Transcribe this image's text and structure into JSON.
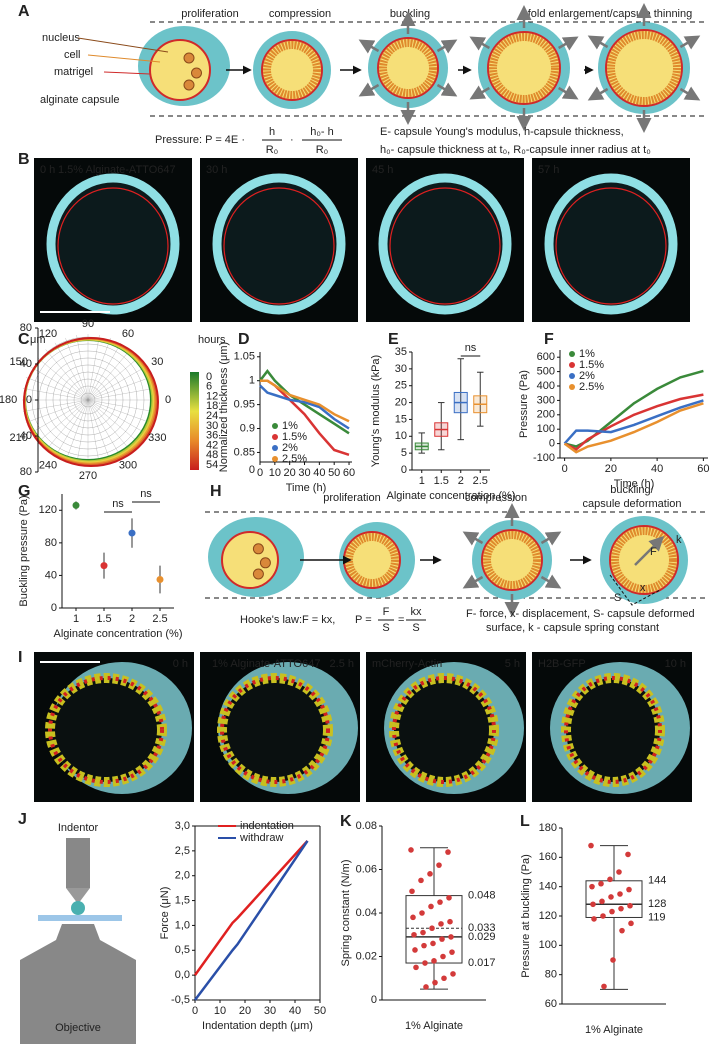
{
  "A": {
    "letter": "A",
    "steps": [
      "proliferation",
      "compression",
      "buckling",
      "fold enlargement/capsule thinning"
    ],
    "labels": {
      "nucleus": "nucleus",
      "cell": "cell",
      "matrigel": "matrigel",
      "capsule": "alginate capsule"
    },
    "formula": {
      "lead": "Pressure:  P = 4E ·",
      "f1_num": "h",
      "f1_den": "R₀",
      "dot": "·",
      "f2_num": "h₀- h",
      "f2_den": "R₀"
    },
    "legend": [
      "E- capsule Young's modulus, h-capsule thickness,",
      "h₀- capsule thickness at t₀, R₀-capsule inner radius at t₀"
    ]
  },
  "B": {
    "letter": "B",
    "stain": "1.5% Alginate-ATTO647",
    "times": [
      "0 h",
      "30 h",
      "45 h",
      "57 h"
    ]
  },
  "C": {
    "letter": "C",
    "unit": "μm",
    "rticks": [
      80,
      40,
      0,
      {
        "value": -40,
        "label": "40"
      },
      {
        "value": -80,
        "label": "80"
      }
    ],
    "angles": [
      90,
      60,
      30,
      0,
      330,
      300,
      270,
      240,
      210,
      180,
      150,
      120
    ],
    "colorbar_title": "hours",
    "colorbar_ticks": [
      0,
      6,
      12,
      18,
      24,
      30,
      36,
      42,
      48,
      54
    ]
  },
  "D": {
    "letter": "D",
    "chart": {
      "type": "line",
      "ylabel": "Normalized thickness (μm)",
      "xlabel": "Time (h)",
      "y_origin_label": "0",
      "xlim": [
        0,
        62
      ],
      "xticks": [
        0,
        10,
        20,
        30,
        40,
        50,
        60
      ],
      "ylim": [
        0.83,
        1.06
      ],
      "yticks": [
        0.85,
        0.9,
        0.95,
        1,
        1.05
      ],
      "x": [
        0,
        5,
        10,
        20,
        30,
        40,
        50,
        60
      ],
      "series": [
        {
          "name": "1%",
          "color": "#3a8a3a",
          "values": [
            1.0,
            1.02,
            1.0,
            0.97,
            0.95,
            0.93,
            0.91,
            0.89
          ]
        },
        {
          "name": "1.5%",
          "color": "#d93434",
          "values": [
            1.0,
            1.0,
            0.99,
            0.96,
            0.93,
            0.89,
            0.855,
            0.845
          ]
        },
        {
          "name": "2%",
          "color": "#3a6fc4",
          "values": [
            0.99,
            0.975,
            0.97,
            0.96,
            0.955,
            0.945,
            0.92,
            0.9
          ]
        },
        {
          "name": "2.5%",
          "color": "#e8902e",
          "values": [
            1.0,
            1.0,
            0.99,
            0.97,
            0.96,
            0.95,
            0.93,
            0.915
          ]
        }
      ]
    }
  },
  "E": {
    "letter": "E",
    "chart": {
      "type": "box",
      "ylabel": "Young's modulus (kPa)",
      "xlabel": "Alginate concentration (%)",
      "categories": [
        "1",
        "1.5",
        "2",
        "2.5"
      ],
      "ylim": [
        0,
        35
      ],
      "yticks": [
        0,
        5,
        10,
        15,
        20,
        25,
        30,
        35
      ],
      "annotation": "ns",
      "boxes": [
        {
          "color": "#3a8a3a",
          "low": 5,
          "q1": 6,
          "median": 7,
          "q3": 8,
          "high": 11
        },
        {
          "color": "#d93434",
          "low": 6,
          "q1": 10,
          "median": 12,
          "q3": 14,
          "high": 20
        },
        {
          "color": "#3a6fc4",
          "low": 9,
          "q1": 17,
          "median": 20,
          "q3": 23,
          "high": 33
        },
        {
          "color": "#e8902e",
          "low": 13,
          "q1": 17,
          "median": 19.5,
          "q3": 22,
          "high": 29
        }
      ]
    }
  },
  "F": {
    "letter": "F",
    "chart": {
      "type": "line",
      "ylabel": "Pressure (Pa)",
      "xlabel": "Time (h)",
      "xlim": [
        -2,
        62
      ],
      "xticks": [
        0,
        20,
        40,
        60
      ],
      "ylim": [
        -100,
        650
      ],
      "yticks": [
        -100,
        0,
        100,
        200,
        300,
        400,
        500,
        600
      ],
      "x": [
        0,
        5,
        10,
        20,
        30,
        40,
        50,
        60
      ],
      "series": [
        {
          "name": "1%",
          "color": "#3a8a3a",
          "values": [
            0,
            -20,
            20,
            150,
            280,
            380,
            460,
            505
          ]
        },
        {
          "name": "1.5%",
          "color": "#d93434",
          "values": [
            0,
            -40,
            30,
            120,
            200,
            260,
            310,
            340
          ]
        },
        {
          "name": "2%",
          "color": "#3a6fc4",
          "values": [
            0,
            90,
            90,
            80,
            130,
            190,
            250,
            300
          ]
        },
        {
          "name": "2.5%",
          "color": "#e8902e",
          "values": [
            0,
            -60,
            -20,
            20,
            80,
            150,
            230,
            280
          ]
        }
      ]
    }
  },
  "G": {
    "letter": "G",
    "chart": {
      "type": "errorbar",
      "ylabel": "Buckling pressure (Pa)",
      "xlabel": "Alginate concentration (%)",
      "categories": [
        "1",
        "1.5",
        "2",
        "2.5"
      ],
      "values": [
        126,
        52,
        92,
        35
      ],
      "errors": [
        5,
        16,
        18,
        17
      ],
      "colors": [
        "#3a8a3a",
        "#d93434",
        "#3a6fc4",
        "#e8902e"
      ],
      "ylim": [
        0,
        140
      ],
      "yticks": [
        0,
        40,
        80,
        120
      ],
      "annotations": [
        "ns",
        "ns"
      ]
    }
  },
  "H": {
    "letter": "H",
    "steps": [
      "proliferation",
      "compression",
      "buckling/",
      "capsule deformation"
    ],
    "symbols": {
      "F": "F",
      "k": "k",
      "S": "S",
      "x": "x"
    },
    "hooke": "Hooke's law:F = kx,",
    "formula": {
      "lead": "P =",
      "f1_num": "F",
      "f1_den": "S",
      "eq": "=",
      "f2_num": "kx",
      "f2_den": "S"
    },
    "legend": [
      "F- force, x- displacement, S- capsule deformed",
      "surface, k - capsule spring constant"
    ]
  },
  "I": {
    "letter": "I",
    "times": [
      "0 h",
      "2.5 h",
      "5 h",
      "10 h"
    ],
    "stains": [
      "1% Alginate-ATTO647",
      "mCherry-Actin",
      "H2B-GFP"
    ]
  },
  "J": {
    "letter": "J",
    "indentor": "Indentor",
    "objective": "Objective",
    "chart": {
      "type": "line",
      "ylabel": "Force (μN)",
      "xlabel": "Indentation depth (μm)",
      "xlim": [
        0,
        50
      ],
      "xticks": [
        0,
        10,
        20,
        30,
        40,
        50
      ],
      "ylim": [
        -0.5,
        3.0
      ],
      "yticks": [
        {
          "value": 3,
          "label": "3,0"
        },
        {
          "value": 2.5,
          "label": "2,5"
        },
        {
          "value": 2,
          "label": "2,0"
        },
        {
          "value": 1.5,
          "label": "1,5"
        },
        {
          "value": 1,
          "label": "1,0"
        },
        {
          "value": 0.5,
          "label": "0,5"
        },
        {
          "value": 0,
          "label": "0,0"
        },
        {
          "value": -0.5,
          "label": "-0,5"
        }
      ],
      "x": [
        0,
        15,
        17,
        45
      ],
      "series": [
        {
          "name": "indentation",
          "color": "#e02020",
          "values": [
            0,
            1.05,
            1.15,
            2.7
          ]
        },
        {
          "name": "withdraw",
          "color": "#2a4fa8",
          "values": [
            -0.5,
            0.5,
            0.62,
            2.7
          ]
        }
      ]
    }
  },
  "K": {
    "letter": "K",
    "chart": {
      "type": "box",
      "ylabel": "Spring constant (N/m)",
      "xlabel": "1% Alginate",
      "color": "#d33a3a",
      "ylim": [
        0,
        0.08
      ],
      "yticks": [
        0,
        0.02,
        0.04,
        0.06,
        0.08
      ],
      "box": {
        "low": 0.005,
        "q1": 0.017,
        "median": 0.029,
        "mean": 0.033,
        "q3": 0.048,
        "high": 0.07
      },
      "points": [
        0.069,
        0.068,
        0.062,
        0.058,
        0.055,
        0.05,
        0.047,
        0.045,
        0.043,
        0.04,
        0.038,
        0.036,
        0.035,
        0.033,
        0.031,
        0.03,
        0.029,
        0.028,
        0.026,
        0.025,
        0.023,
        0.022,
        0.02,
        0.018,
        0.017,
        0.015,
        0.012,
        0.01,
        0.008,
        0.006
      ]
    }
  },
  "L": {
    "letter": "L",
    "chart": {
      "type": "box",
      "ylabel": "Pressure at buckling (Pa)",
      "xlabel": "1% Alginate",
      "color": "#d33a3a",
      "ylim": [
        60,
        180
      ],
      "yticks": [
        60,
        80,
        100,
        120,
        140,
        160,
        180
      ],
      "box": {
        "low": 70,
        "q1": 119,
        "median": 128,
        "q3": 144,
        "high": 168
      },
      "points": [
        168,
        162,
        150,
        145,
        142,
        140,
        138,
        135,
        133,
        130,
        128,
        127,
        125,
        123,
        120,
        118,
        115,
        110,
        90,
        72
      ]
    }
  }
}
